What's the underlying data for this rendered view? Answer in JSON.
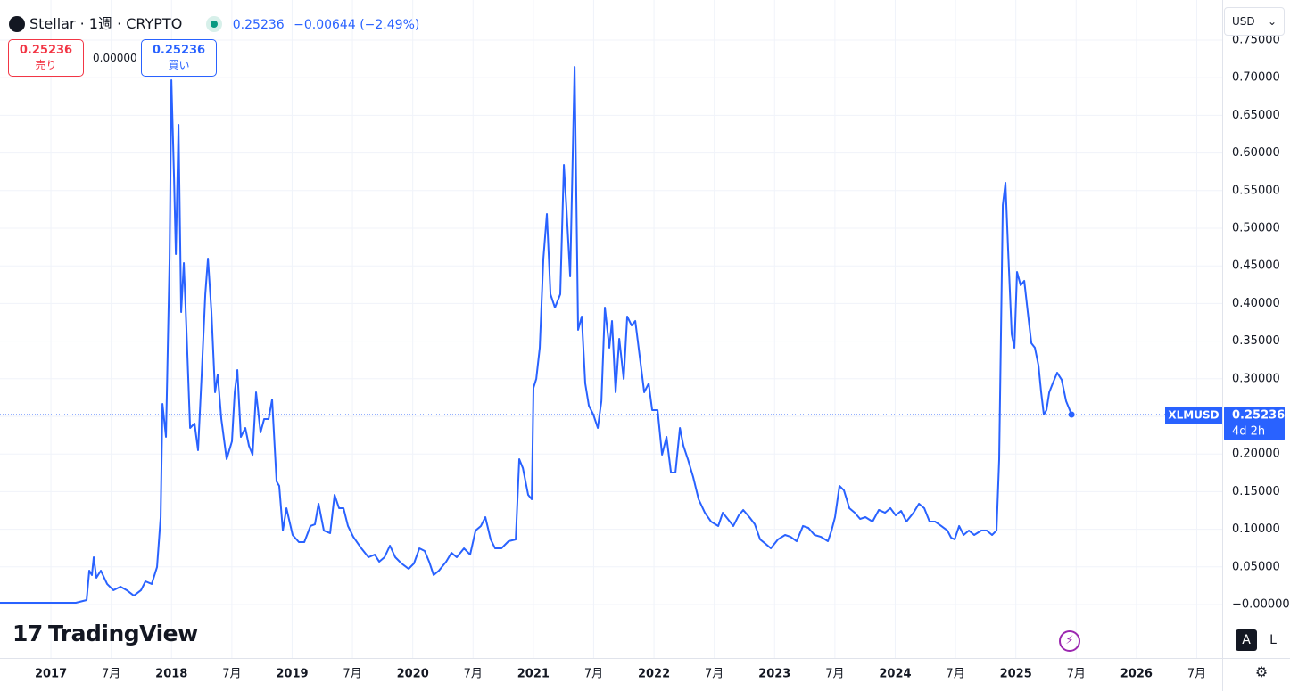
{
  "header": {
    "symbol": "Stellar · 1週 · CRYPTO",
    "price": "0.25236",
    "change": "−0.00644",
    "change_pct": "(−2.49%)",
    "sell_price": "0.25236",
    "sell_label": "売り",
    "spread": "0.00000",
    "buy_price": "0.25236",
    "buy_label": "買い",
    "currency": "USD",
    "watermark": "TradingView",
    "auto_button": "A",
    "log_button": "L"
  },
  "chart_data": {
    "type": "line",
    "symbol": "XLMUSD",
    "countdown": "4d 2h",
    "color": "#2962ff",
    "last_price": 0.25236,
    "grid": true,
    "x": [
      2016.578,
      2016.948,
      2017.207,
      2017.296,
      2017.318,
      2017.34,
      2017.355,
      2017.377,
      2017.414,
      2017.466,
      2017.518,
      2017.577,
      2017.629,
      2017.688,
      2017.747,
      2017.784,
      2017.836,
      2017.88,
      2017.91,
      2017.925,
      2017.954,
      2017.984,
      2017.999,
      2018.021,
      2018.036,
      2018.058,
      2018.08,
      2018.102,
      2018.124,
      2018.154,
      2018.191,
      2018.22,
      2018.25,
      2018.28,
      2018.302,
      2018.331,
      2018.361,
      2018.383,
      2018.413,
      2018.457,
      2018.501,
      2018.524,
      2018.546,
      2018.575,
      2018.612,
      2018.642,
      2018.672,
      2018.701,
      2018.738,
      2018.768,
      2018.805,
      2018.834,
      2018.871,
      2018.893,
      2018.923,
      2018.953,
      2019.004,
      2019.056,
      2019.101,
      2019.152,
      2019.189,
      2019.219,
      2019.263,
      2019.315,
      2019.352,
      2019.389,
      2019.426,
      2019.463,
      2019.507,
      2019.574,
      2019.633,
      2019.685,
      2019.722,
      2019.766,
      2019.811,
      2019.855,
      2019.907,
      2019.966,
      2020.01,
      2020.055,
      2020.099,
      2020.136,
      2020.173,
      2020.217,
      2020.277,
      2020.321,
      2020.365,
      2020.425,
      2020.476,
      2020.521,
      2020.565,
      2020.602,
      2020.646,
      2020.683,
      2020.735,
      2020.794,
      2020.854,
      2020.883,
      2020.913,
      2020.957,
      2020.987,
      2021.001,
      2021.024,
      2021.053,
      2021.083,
      2021.112,
      2021.142,
      2021.179,
      2021.223,
      2021.253,
      2021.275,
      2021.305,
      2021.342,
      2021.371,
      2021.401,
      2021.43,
      2021.46,
      2021.497,
      2021.534,
      2021.564,
      2021.593,
      2021.63,
      2021.652,
      2021.682,
      2021.712,
      2021.749,
      2021.778,
      2021.815,
      2021.845,
      2021.882,
      2021.919,
      2021.956,
      2021.985,
      2022.03,
      2022.067,
      2022.104,
      2022.141,
      2022.178,
      2022.215,
      2022.244,
      2022.281,
      2022.325,
      2022.37,
      2022.422,
      2022.473,
      2022.533,
      2022.57,
      2022.629,
      2022.658,
      2022.703,
      2022.74,
      2022.791,
      2022.836,
      2022.88,
      2022.925,
      2022.969,
      2023.028,
      2023.087,
      2023.132,
      2023.183,
      2023.235,
      2023.28,
      2023.331,
      2023.383,
      2023.442,
      2023.472,
      2023.501,
      2023.538,
      2023.575,
      2023.62,
      2023.664,
      2023.709,
      2023.753,
      2023.812,
      2023.864,
      2023.916,
      2023.96,
      2024.004,
      2024.049,
      2024.093,
      2024.152,
      2024.197,
      2024.241,
      2024.285,
      2024.33,
      2024.382,
      2024.433,
      2024.463,
      2024.493,
      2024.53,
      2024.567,
      2024.611,
      2024.655,
      2024.714,
      2024.759,
      2024.803,
      2024.84,
      2024.862,
      2024.892,
      2024.914,
      2024.936,
      2024.966,
      2024.988,
      2025.01,
      2025.04,
      2025.07,
      2025.099,
      2025.129,
      2025.158,
      2025.188,
      2025.21,
      2025.232,
      2025.254,
      2025.277,
      2025.306,
      2025.343,
      2025.38,
      2025.417,
      2025.462
    ],
    "values": [
      0.0024,
      0.0024,
      0.0024,
      0.0059,
      0.045,
      0.0391,
      0.0628,
      0.0355,
      0.045,
      0.0273,
      0.019,
      0.0237,
      0.019,
      0.0118,
      0.019,
      0.0308,
      0.0273,
      0.0498,
      0.1161,
      0.2666,
      0.2227,
      0.4597,
      0.6967,
      0.5663,
      0.4656,
      0.6374,
      0.3886,
      0.4537,
      0.3649,
      0.2346,
      0.2405,
      0.205,
      0.3057,
      0.4123,
      0.4597,
      0.3886,
      0.282,
      0.3057,
      0.2464,
      0.1931,
      0.2168,
      0.282,
      0.3116,
      0.2227,
      0.2346,
      0.2109,
      0.199,
      0.282,
      0.2287,
      0.2464,
      0.2464,
      0.2725,
      0.1635,
      0.1576,
      0.0983,
      0.128,
      0.0924,
      0.0829,
      0.0829,
      0.1043,
      0.1066,
      0.1339,
      0.0983,
      0.0948,
      0.1457,
      0.128,
      0.128,
      0.1043,
      0.09,
      0.0746,
      0.0628,
      0.0663,
      0.0569,
      0.0628,
      0.0782,
      0.0628,
      0.0545,
      0.0474,
      0.0545,
      0.0746,
      0.0711,
      0.0569,
      0.0391,
      0.045,
      0.0569,
      0.0687,
      0.0628,
      0.0746,
      0.0663,
      0.0983,
      0.1043,
      0.1161,
      0.0865,
      0.0746,
      0.0746,
      0.0841,
      0.0865,
      0.1931,
      0.1813,
      0.1457,
      0.1398,
      0.2879,
      0.2998,
      0.3412,
      0.4597,
      0.5189,
      0.4123,
      0.3945,
      0.4123,
      0.5841,
      0.5249,
      0.436,
      0.7144,
      0.3649,
      0.3827,
      0.2938,
      0.2642,
      0.2524,
      0.2346,
      0.2701,
      0.3945,
      0.3412,
      0.3768,
      0.282,
      0.3531,
      0.2998,
      0.3827,
      0.3708,
      0.3768,
      0.3294,
      0.282,
      0.2938,
      0.2583,
      0.2583,
      0.199,
      0.2227,
      0.1754,
      0.1754,
      0.2346,
      0.2109,
      0.1931,
      0.1694,
      0.1398,
      0.122,
      0.1102,
      0.1043,
      0.122,
      0.1102,
      0.1043,
      0.1185,
      0.1256,
      0.1161,
      0.1066,
      0.0865,
      0.0806,
      0.0746,
      0.0865,
      0.0924,
      0.09,
      0.0841,
      0.1043,
      0.1019,
      0.0924,
      0.09,
      0.0841,
      0.0983,
      0.1161,
      0.1576,
      0.1517,
      0.128,
      0.122,
      0.1137,
      0.1161,
      0.1102,
      0.1256,
      0.122,
      0.128,
      0.1185,
      0.1244,
      0.1102,
      0.122,
      0.1339,
      0.128,
      0.1102,
      0.1102,
      0.1043,
      0.0983,
      0.0889,
      0.0865,
      0.1043,
      0.0924,
      0.0983,
      0.0924,
      0.0983,
      0.0983,
      0.0924,
      0.0983,
      0.1931,
      0.5308,
      0.5604,
      0.4716,
      0.359,
      0.3412,
      0.4419,
      0.4242,
      0.4301,
      0.3886,
      0.3471,
      0.3412,
      0.3175,
      0.282,
      0.2524,
      0.2583,
      0.282,
      0.2938,
      0.308,
      0.2986,
      0.2701,
      0.25236
    ],
    "xlim": [
      2016.578,
      2026.711
    ],
    "xticks": [
      2017,
      {
        "value": 2017.5,
        "label": "7月"
      },
      2018,
      {
        "value": 2018.5,
        "label": "7月"
      },
      2019,
      {
        "value": 2019.5,
        "label": "7月"
      },
      2020,
      {
        "value": 2020.5,
        "label": "7月"
      },
      2021,
      {
        "value": 2021.5,
        "label": "7月"
      },
      2022,
      {
        "value": 2022.5,
        "label": "7月"
      },
      2023,
      {
        "value": 2023.5,
        "label": "7月"
      },
      2024,
      {
        "value": 2024.5,
        "label": "7月"
      },
      2025,
      {
        "value": 2025.5,
        "label": "7月"
      },
      2026,
      {
        "value": 2026.5,
        "label": "7月"
      }
    ],
    "ylim": [
      -0.0711,
      0.8033
    ],
    "yticks": [
      {
        "value": 0,
        "label": "−0.00000"
      },
      {
        "value": 0.05,
        "label": "0.05000"
      },
      {
        "value": 0.1,
        "label": "0.10000"
      },
      {
        "value": 0.15,
        "label": "0.15000"
      },
      {
        "value": 0.2,
        "label": "0.20000"
      },
      {
        "value": 0.25,
        "label": "0.25000"
      },
      {
        "value": 0.3,
        "label": "0.30000"
      },
      {
        "value": 0.35,
        "label": "0.35000"
      },
      {
        "value": 0.4,
        "label": "0.40000"
      },
      {
        "value": 0.45,
        "label": "0.45000"
      },
      {
        "value": 0.5,
        "label": "0.50000"
      },
      {
        "value": 0.55,
        "label": "0.55000"
      },
      {
        "value": 0.6,
        "label": "0.60000"
      },
      {
        "value": 0.65,
        "label": "0.65000"
      },
      {
        "value": 0.7,
        "label": "0.70000"
      },
      {
        "value": 0.75,
        "label": "0.75000"
      }
    ]
  }
}
